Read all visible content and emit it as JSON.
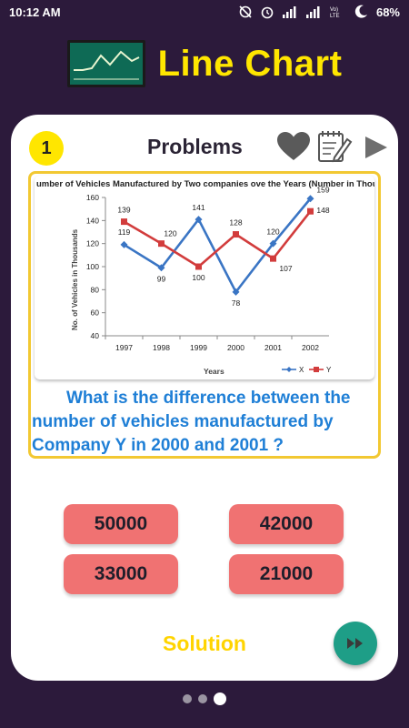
{
  "status": {
    "time": "10:12 AM",
    "battery": "68%",
    "network_label": "Vo) LTE"
  },
  "header": {
    "title": "Line Chart",
    "logo_icon": "line-chart-board-icon"
  },
  "card": {
    "number": "1",
    "title": "Problems",
    "icons": [
      "heart-icon",
      "notes-icon",
      "play-icon"
    ]
  },
  "question": {
    "text": "What is the difference between the number of vehicles manufactured by Company Y in 2000 and 2001 ?"
  },
  "answers": {
    "a": "50000",
    "b": "42000",
    "c": "33000",
    "d": "21000"
  },
  "solution": {
    "label": "Solution"
  },
  "colors": {
    "background": "#2c1a3b",
    "title": "#ffe600",
    "question": "#1f7fd6",
    "answer": "#f07272",
    "series_x": "#3a75c4",
    "series_y": "#d23c3c",
    "next_button": "#1e9e87"
  },
  "chart_data": {
    "type": "line",
    "title": "umber of Vehicles Manufactured by Two companies ove the Years (Number in Thousands)",
    "xlabel": "Years",
    "ylabel": "No. of Vehicles in Thousands",
    "categories": [
      "1997",
      "1998",
      "1999",
      "2000",
      "2001",
      "2002"
    ],
    "ylim": [
      40,
      160
    ],
    "yticks": [
      40,
      60,
      80,
      100,
      120,
      140,
      160
    ],
    "legend_position": "bottom-right",
    "grid": false,
    "series": [
      {
        "name": "X",
        "color": "#3a75c4",
        "marker": "diamond",
        "values": [
          119,
          99,
          141,
          78,
          120,
          159
        ]
      },
      {
        "name": "Y",
        "color": "#d23c3c",
        "marker": "square",
        "values": [
          139,
          120,
          100,
          128,
          107,
          148
        ]
      }
    ]
  }
}
